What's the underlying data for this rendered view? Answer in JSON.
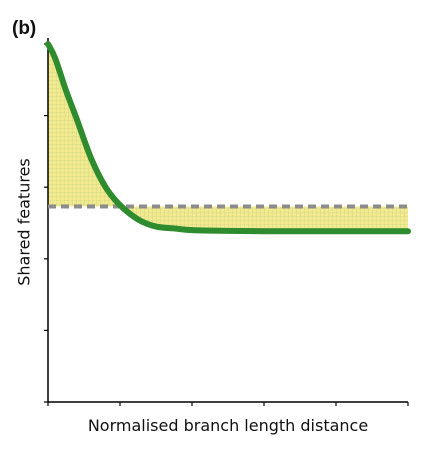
{
  "panel_label": "(b)",
  "colors": {
    "curve": "#2e8b2e",
    "baseline": "#8c8c8c",
    "fill": "#f2e98a",
    "fill_grid": "#b9cf7a",
    "axis": "#000000"
  },
  "chart_data": {
    "type": "line",
    "title": "",
    "xlabel": "Normalised branch length distance",
    "ylabel": "Shared features",
    "xlim": [
      0,
      1
    ],
    "ylim": [
      0,
      1
    ],
    "grid": false,
    "legend": "none",
    "x_ticks": [
      0,
      0.2,
      0.4,
      0.6,
      0.8,
      1.0
    ],
    "y_ticks": [
      0,
      0.2,
      0.4,
      0.6,
      0.8,
      1.0
    ],
    "series": [
      {
        "style": "solid-green",
        "x": [
          0,
          0.02,
          0.05,
          0.08,
          0.12,
          0.16,
          0.2,
          0.25,
          0.3,
          0.35,
          0.4,
          0.5,
          0.6,
          0.7,
          0.8,
          0.9,
          1.0
        ],
        "y": [
          1.0,
          0.96,
          0.87,
          0.79,
          0.68,
          0.6,
          0.55,
          0.51,
          0.49,
          0.485,
          0.48,
          0.478,
          0.477,
          0.477,
          0.477,
          0.477,
          0.477
        ]
      },
      {
        "style": "dashed-grey",
        "x": [
          0,
          1.0
        ],
        "y": [
          0.546,
          0.546
        ]
      }
    ],
    "shaded_region": "between curve and dashed baseline"
  }
}
